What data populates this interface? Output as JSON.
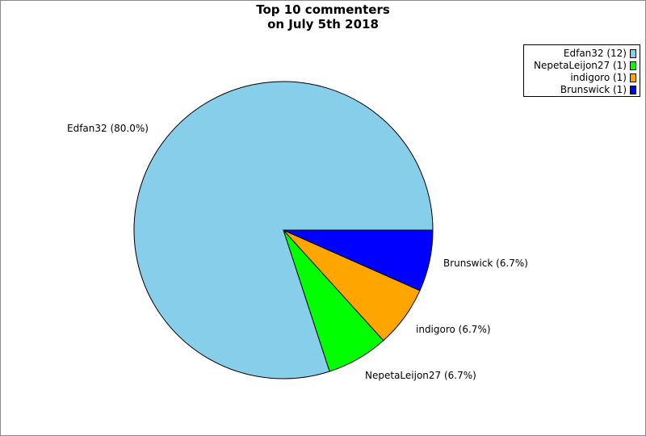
{
  "chart_data": {
    "type": "pie",
    "title_lines": [
      "Top 10 commenters",
      "on July 5th 2018"
    ],
    "slices": [
      {
        "name": "Edfan32",
        "value": 12,
        "percent_label": "Edfan32 (80.0%)",
        "legend_label": "Edfan32 (12)",
        "color": "#87ceeb"
      },
      {
        "name": "NepetaLeijon27",
        "value": 1,
        "percent_label": "NepetaLeijon27 (6.7%)",
        "legend_label": "NepetaLeijon27 (1)",
        "color": "#00ff00"
      },
      {
        "name": "indigoro",
        "value": 1,
        "percent_label": "indigoro (6.7%)",
        "legend_label": "indigoro (1)",
        "color": "#ffa500"
      },
      {
        "name": "Brunswick",
        "value": 1,
        "percent_label": "Brunswick (6.7%)",
        "legend_label": "Brunswick (1)",
        "color": "#0000ff"
      }
    ],
    "legend_position": "top-right"
  }
}
